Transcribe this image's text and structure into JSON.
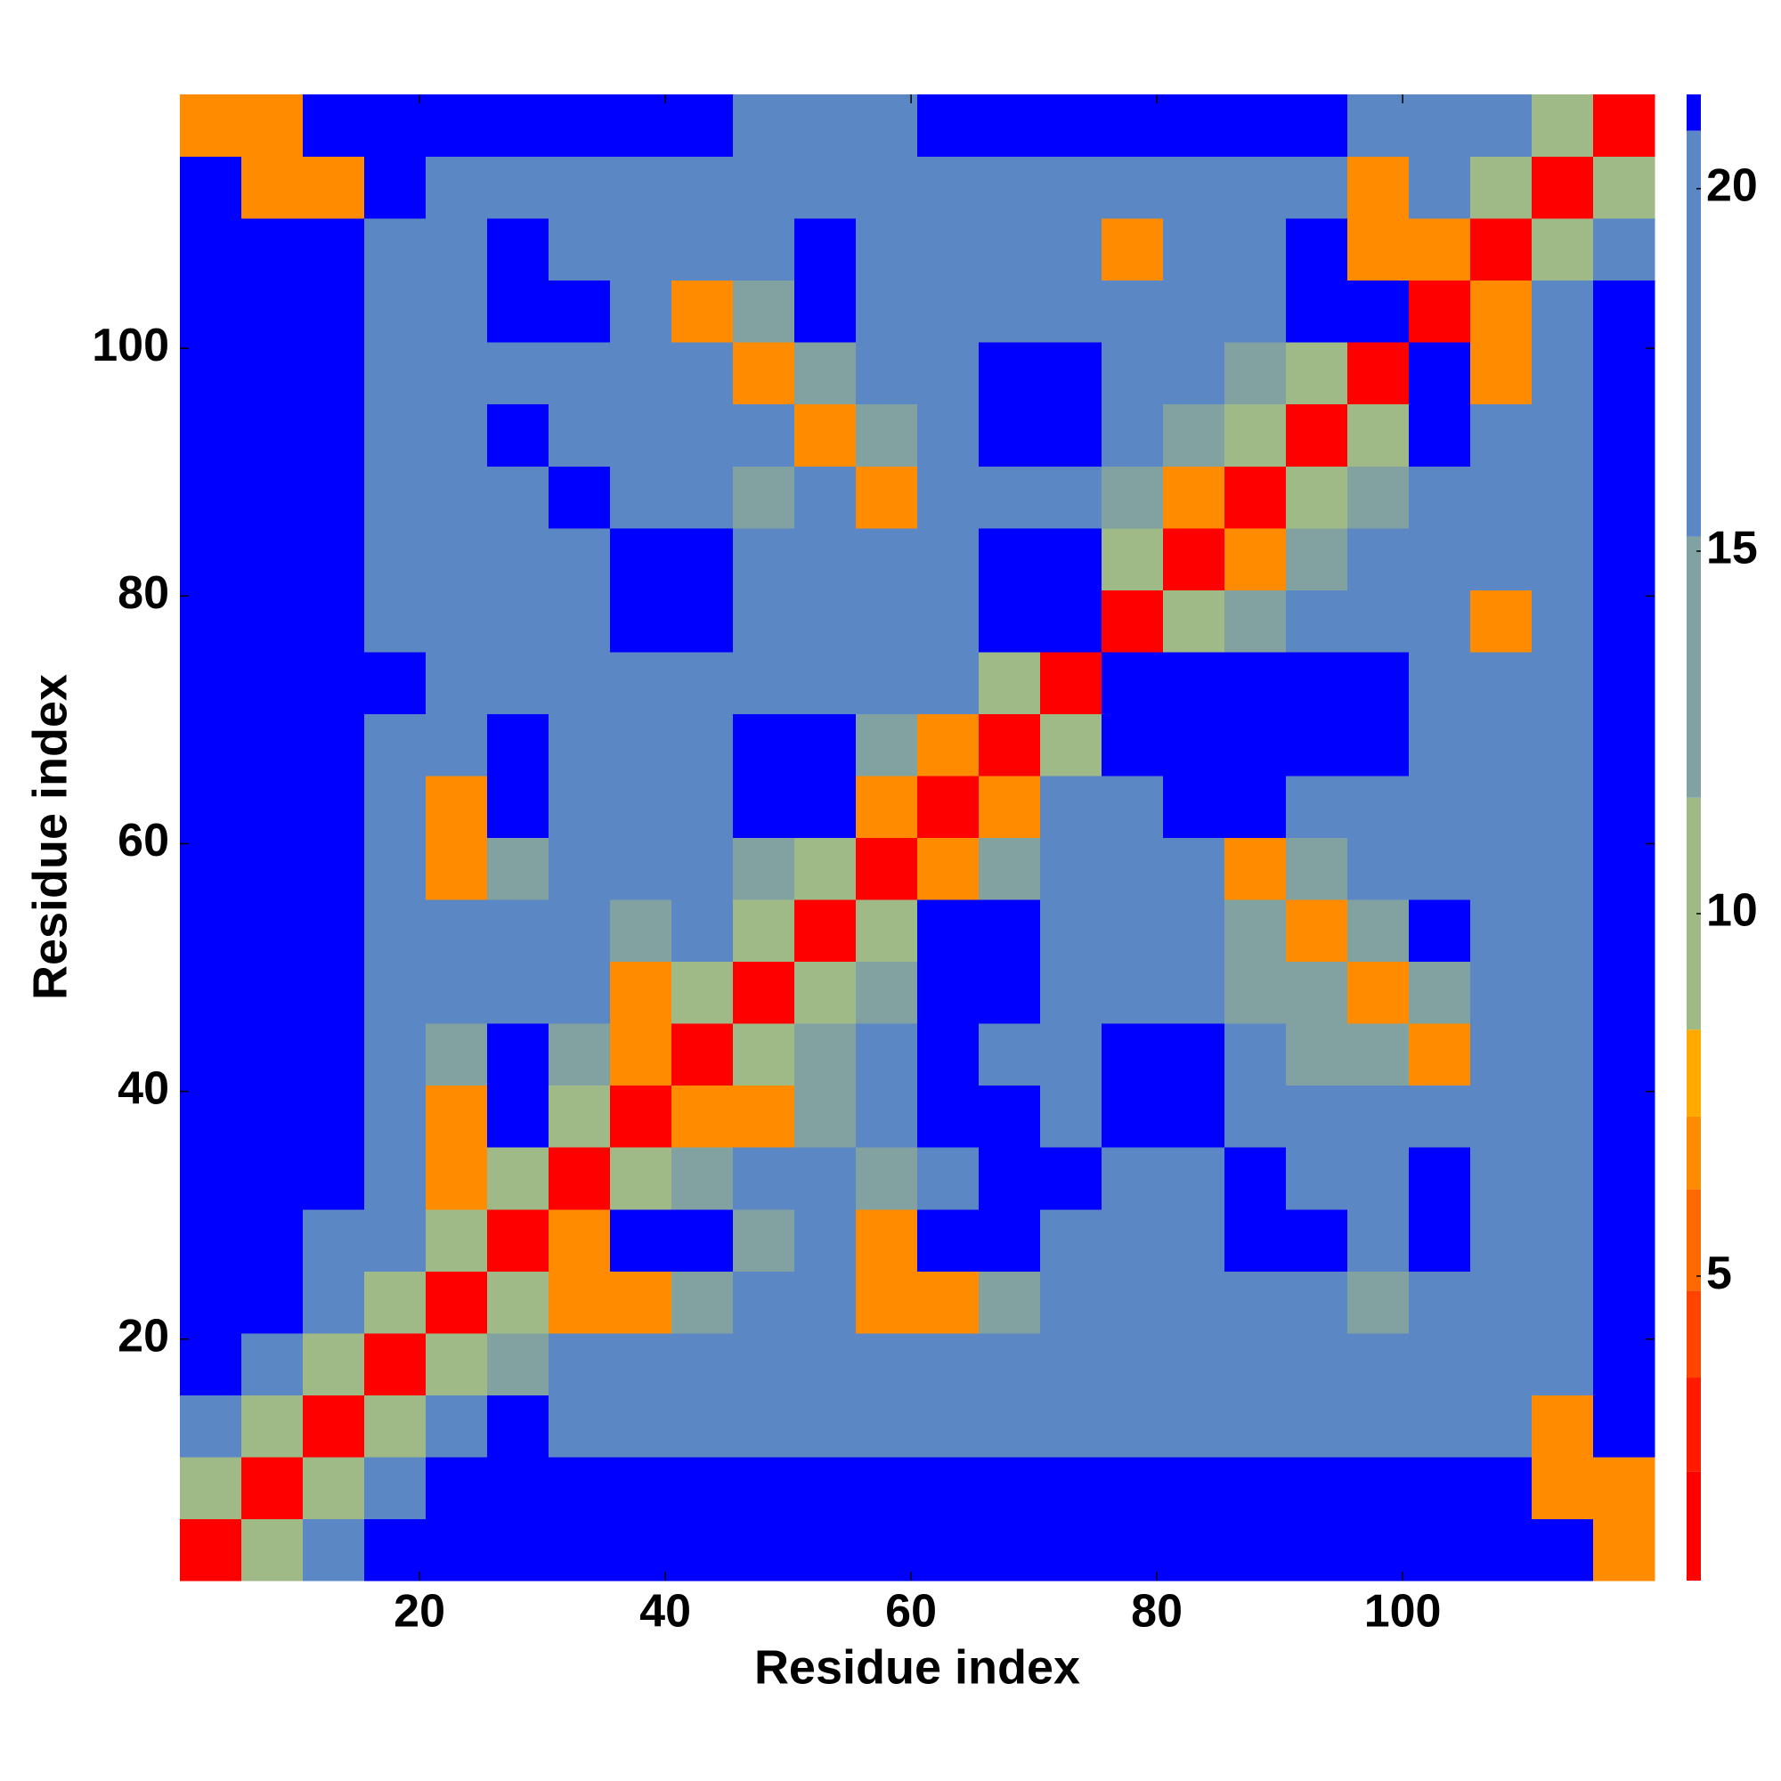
{
  "chart_data": {
    "type": "heatmap",
    "x_label": "Residue index",
    "y_label": "Residue index",
    "x": [
      3,
      8,
      13,
      18,
      23,
      28,
      33,
      38,
      43,
      48,
      53,
      58,
      63,
      68,
      73,
      78,
      83,
      88,
      93,
      98,
      103,
      108,
      113,
      118
    ],
    "y": [
      3,
      8,
      13,
      18,
      23,
      28,
      33,
      38,
      43,
      48,
      53,
      58,
      63,
      68,
      73,
      78,
      83,
      88,
      93,
      98,
      103,
      108,
      113,
      118
    ],
    "values": [
      [
        2,
        9,
        16,
        21,
        21,
        21,
        21,
        21,
        21,
        21,
        21,
        21,
        21,
        21,
        21,
        21,
        21,
        21,
        21,
        21,
        21,
        21,
        21,
        6.5
      ],
      [
        9,
        2,
        9,
        16,
        21,
        21,
        21,
        21,
        21,
        21,
        21,
        21,
        21,
        21,
        21,
        21,
        21,
        21,
        21,
        21,
        21,
        21,
        6.5,
        6.5
      ],
      [
        16,
        9,
        2,
        9,
        16,
        21,
        18,
        18,
        18,
        18,
        18,
        18,
        18,
        18,
        18,
        18,
        18,
        18,
        18,
        18,
        18,
        18,
        6.5,
        21
      ],
      [
        21,
        16,
        9,
        2,
        9,
        13,
        16,
        16,
        16,
        16,
        16,
        16,
        16,
        16,
        16,
        16,
        16,
        16,
        16,
        16,
        16,
        16,
        18,
        21
      ],
      [
        21,
        21,
        16,
        9,
        2,
        9,
        6.5,
        6.5,
        13,
        16,
        16,
        6.5,
        6.5,
        13,
        16,
        16,
        16,
        16,
        16,
        13,
        16,
        16,
        18,
        21
      ],
      [
        21,
        21,
        18,
        16,
        9,
        2,
        6.5,
        21,
        21,
        13,
        16,
        6.5,
        21,
        21,
        16,
        18,
        16,
        21,
        21,
        16,
        21,
        16,
        18,
        21
      ],
      [
        21,
        21,
        21,
        16,
        6.5,
        9,
        2,
        9,
        13,
        16,
        16,
        13,
        16,
        21,
        21,
        16,
        16,
        21,
        16,
        16,
        21,
        16,
        18,
        21
      ],
      [
        21,
        21,
        21,
        16,
        6.5,
        21,
        9,
        2,
        6.5,
        6.5,
        13,
        16,
        21,
        21,
        16,
        21,
        21,
        16,
        16,
        16,
        16,
        16,
        18,
        21
      ],
      [
        21,
        21,
        21,
        16,
        13,
        21,
        13,
        6.5,
        2,
        9,
        13,
        16,
        21,
        16,
        16,
        21,
        21,
        16,
        13,
        13,
        6.5,
        16,
        18,
        21
      ],
      [
        21,
        21,
        21,
        18,
        16,
        16,
        16,
        6.5,
        9,
        2,
        9,
        13,
        21,
        21,
        16,
        16,
        16,
        13,
        13,
        6.5,
        13,
        16,
        18,
        21
      ],
      [
        21,
        21,
        21,
        16,
        16,
        16,
        16,
        13,
        16,
        9,
        2,
        9,
        21,
        21,
        16,
        16,
        16,
        13,
        6.5,
        13,
        21,
        16,
        18,
        21
      ],
      [
        21,
        21,
        21,
        16,
        6.5,
        13,
        16,
        16,
        16,
        13,
        9,
        2,
        6.5,
        13,
        16,
        16,
        16,
        6.5,
        13,
        16,
        16,
        16,
        18,
        21
      ],
      [
        21,
        21,
        21,
        16,
        6.5,
        21,
        16,
        16,
        16,
        21,
        21,
        6.5,
        2,
        6.5,
        16,
        16,
        21,
        21,
        16,
        16,
        16,
        16,
        18,
        21
      ],
      [
        21,
        21,
        21,
        18,
        16,
        21,
        16,
        16,
        16,
        21,
        21,
        13,
        6.5,
        2,
        9,
        21,
        21,
        21,
        21,
        21,
        16,
        16,
        18,
        21
      ],
      [
        21,
        21,
        21,
        21,
        16,
        16,
        16,
        16,
        16,
        16,
        16,
        16,
        16,
        9,
        2,
        21,
        21,
        21,
        21,
        21,
        16,
        16,
        18,
        21
      ],
      [
        21,
        21,
        21,
        18,
        16,
        16,
        16,
        21,
        21,
        16,
        16,
        16,
        16,
        21,
        21,
        2,
        9,
        13,
        16,
        16,
        16,
        6.5,
        18,
        21
      ],
      [
        21,
        21,
        21,
        18,
        16,
        16,
        16,
        21,
        21,
        16,
        16,
        16,
        16,
        21,
        21,
        9,
        2,
        6.5,
        13,
        16,
        16,
        16,
        18,
        21
      ],
      [
        21,
        21,
        21,
        16,
        16,
        16,
        21,
        16,
        16,
        13,
        16,
        6.5,
        16,
        16,
        16,
        13,
        6.5,
        2,
        9,
        13,
        16,
        16,
        16,
        21
      ],
      [
        21,
        21,
        21,
        16,
        16,
        21,
        16,
        16,
        16,
        16,
        6.5,
        13,
        16,
        21,
        21,
        16,
        13,
        9,
        2,
        9,
        21,
        16,
        16,
        21
      ],
      [
        21,
        21,
        21,
        16,
        16,
        16,
        16,
        16,
        16,
        6.5,
        13,
        16,
        16,
        21,
        21,
        16,
        16,
        13,
        9,
        2,
        21,
        6.5,
        16,
        21
      ],
      [
        21,
        21,
        21,
        16,
        16,
        21,
        21,
        16,
        6.5,
        13,
        21,
        16,
        16,
        16,
        16,
        16,
        16,
        16,
        21,
        21,
        2,
        6.5,
        18,
        21
      ],
      [
        21,
        21,
        21,
        18,
        16,
        21,
        16,
        16,
        16,
        16,
        21,
        16,
        16,
        16,
        16,
        6.5,
        16,
        16,
        21,
        6.5,
        6.5,
        2,
        9,
        18
      ],
      [
        21,
        6.5,
        6.5,
        21,
        18,
        18,
        16,
        16,
        16,
        16,
        16,
        16,
        18,
        18,
        16,
        16,
        18,
        18,
        16,
        6.5,
        16,
        9,
        2,
        9
      ],
      [
        6.5,
        6.5,
        21,
        21,
        21,
        21,
        21,
        21,
        21,
        18,
        18,
        18,
        21,
        21,
        21,
        21,
        21,
        21,
        21,
        18,
        18,
        18,
        9,
        2
      ]
    ],
    "xlim": [
      0.5,
      120.5
    ],
    "ylim": [
      0.5,
      120.5
    ],
    "xticks": [
      20,
      40,
      60,
      80,
      100
    ],
    "yticks": [
      20,
      40,
      60,
      80,
      100
    ],
    "colorbar": {
      "lim": [
        0.8,
        21.3
      ],
      "ticks": [
        5,
        10,
        15,
        20
      ]
    },
    "colorscale": [
      {
        "max": 2.3,
        "color": "#ff0000"
      },
      {
        "max": 3.6,
        "color": "#ff1a00"
      },
      {
        "max": 4.8,
        "color": "#ff4400"
      },
      {
        "max": 6.2,
        "color": "#ff6a00"
      },
      {
        "max": 7.2,
        "color": "#ff8c00"
      },
      {
        "max": 8.4,
        "color": "#ffaa00"
      },
      {
        "max": 11.6,
        "color": "#9fb987"
      },
      {
        "max": 15.2,
        "color": "#82a2a2"
      },
      {
        "max": 20.8,
        "color": "#5b87c4"
      },
      {
        "max": 21.3,
        "color": "#0000ff"
      }
    ]
  }
}
